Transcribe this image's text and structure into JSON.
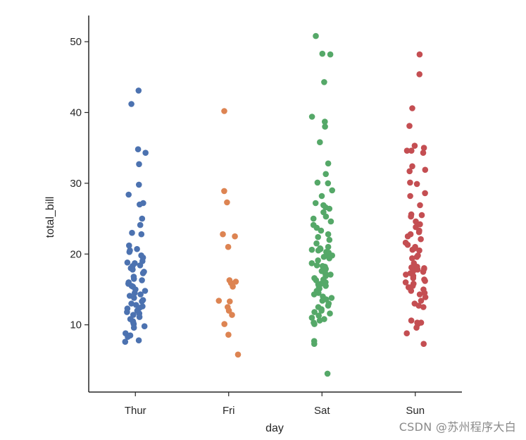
{
  "chart_data": {
    "type": "scatter",
    "subtype": "stripplot",
    "title": "",
    "xlabel": "day",
    "ylabel": "total_bill",
    "categories": [
      "Thur",
      "Fri",
      "Sat",
      "Sun"
    ],
    "ylim": [
      0.5,
      53.7
    ],
    "yticks": [
      10,
      20,
      30,
      40,
      50
    ],
    "grid": false,
    "legend": "none",
    "colors": [
      "#4c72b0",
      "#dd8452",
      "#55a868",
      "#c44e52"
    ],
    "series": [
      {
        "category": "Thur",
        "values": [
          43.1,
          41.2,
          34.8,
          34.3,
          32.7,
          29.8,
          28.4,
          27.2,
          27.0,
          25.0,
          24.1,
          23.0,
          22.8,
          21.2,
          20.7,
          20.5,
          20.3,
          19.8,
          19.5,
          19.0,
          18.8,
          18.7,
          18.4,
          18.3,
          18.0,
          17.8,
          17.5,
          17.3,
          16.8,
          16.5,
          16.3,
          16.0,
          15.8,
          15.5,
          15.4,
          15.0,
          14.8,
          14.5,
          14.3,
          14.1,
          13.8,
          13.5,
          13.3,
          13.0,
          12.8,
          12.6,
          12.4,
          12.3,
          12.0,
          11.8,
          11.6,
          11.4,
          11.1,
          10.8,
          10.5,
          10.3,
          10.1,
          9.8,
          9.6,
          8.8,
          8.5,
          8.3,
          7.8,
          7.6
        ]
      },
      {
        "category": "Fri",
        "values": [
          40.2,
          28.9,
          27.3,
          22.8,
          22.5,
          21.0,
          16.3,
          16.1,
          15.9,
          15.4,
          13.4,
          13.3,
          12.5,
          12.0,
          11.4,
          10.1,
          8.6,
          5.8
        ]
      },
      {
        "category": "Sat",
        "values": [
          50.8,
          48.3,
          48.2,
          44.3,
          39.4,
          38.7,
          38.0,
          35.8,
          32.8,
          31.3,
          30.1,
          30.0,
          29.0,
          28.2,
          27.2,
          26.9,
          26.6,
          26.4,
          25.9,
          25.3,
          25.0,
          24.6,
          24.1,
          23.7,
          23.3,
          22.8,
          22.4,
          22.0,
          21.5,
          21.0,
          20.8,
          20.7,
          20.6,
          20.5,
          20.3,
          20.2,
          20.0,
          19.8,
          19.6,
          19.4,
          19.1,
          18.7,
          18.4,
          18.3,
          18.2,
          17.9,
          17.8,
          17.6,
          17.3,
          17.1,
          16.9,
          16.6,
          16.4,
          16.3,
          16.0,
          15.8,
          15.7,
          15.5,
          15.3,
          15.1,
          14.8,
          14.5,
          14.3,
          14.0,
          13.8,
          13.6,
          13.4,
          13.0,
          12.7,
          12.5,
          12.2,
          12.0,
          11.8,
          11.6,
          11.3,
          11.0,
          10.8,
          10.6,
          10.3,
          10.1,
          7.7,
          7.3,
          3.1
        ]
      },
      {
        "category": "Sun",
        "values": [
          48.2,
          45.4,
          40.6,
          38.1,
          35.3,
          35.0,
          34.6,
          34.6,
          34.3,
          32.4,
          31.9,
          31.7,
          30.1,
          29.9,
          28.6,
          28.2,
          26.9,
          25.6,
          25.5,
          25.3,
          24.6,
          24.2,
          23.8,
          23.3,
          23.1,
          22.8,
          22.5,
          22.1,
          21.6,
          21.3,
          21.0,
          20.8,
          20.6,
          20.5,
          19.8,
          19.6,
          19.4,
          18.7,
          18.3,
          18.2,
          18.1,
          18.0,
          17.9,
          17.8,
          17.6,
          17.5,
          17.3,
          17.1,
          16.9,
          16.6,
          16.4,
          16.2,
          16.0,
          15.8,
          15.5,
          15.3,
          15.0,
          14.8,
          14.5,
          14.3,
          13.9,
          13.4,
          13.0,
          12.7,
          12.5,
          10.6,
          10.3,
          10.3,
          10.1,
          9.6,
          8.8,
          7.3
        ]
      }
    ]
  },
  "watermark": "CSDN @苏州程序大白"
}
